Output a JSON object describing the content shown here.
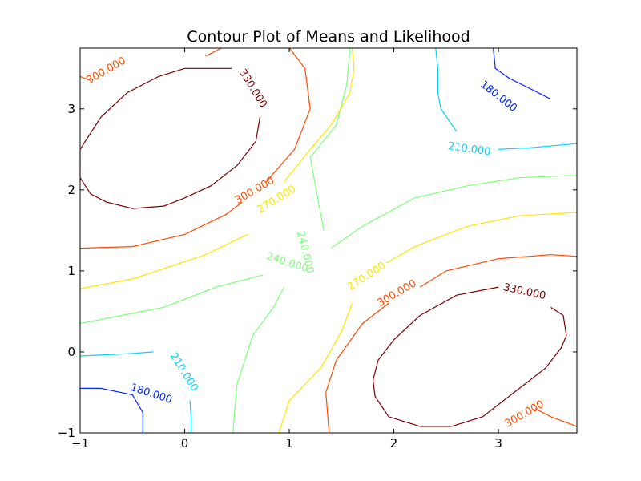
{
  "chart_data": {
    "type": "contour",
    "title": "Contour Plot of Means and Likelihood",
    "xlabel": "",
    "ylabel": "",
    "xlim": [
      -1,
      3.75
    ],
    "ylim": [
      -1,
      3.75
    ],
    "grid": false,
    "legend": "none",
    "x_ticks": [
      {
        "value": -1,
        "label": "−1"
      },
      {
        "value": 0,
        "label": "0"
      },
      {
        "value": 1,
        "label": "1"
      },
      {
        "value": 2,
        "label": "2"
      },
      {
        "value": 3,
        "label": "3"
      }
    ],
    "y_ticks": [
      {
        "value": -1,
        "label": "−1"
      },
      {
        "value": 0,
        "label": "0"
      },
      {
        "value": 1,
        "label": "1"
      },
      {
        "value": 2,
        "label": "2"
      },
      {
        "value": 3,
        "label": "3"
      }
    ],
    "levels": [
      {
        "level": 180,
        "color": "#0028ff",
        "paths": [
          [
            [
              2.95,
              3.75
            ],
            [
              2.97,
              3.5
            ],
            [
              3.1,
              3.38
            ],
            [
              3.35,
              3.22
            ],
            [
              3.5,
              3.12
            ]
          ],
          [
            [
              -1,
              -0.45
            ],
            [
              -0.8,
              -0.45
            ],
            [
              -0.5,
              -0.53
            ],
            [
              -0.4,
              -0.75
            ],
            [
              -0.4,
              -1
            ]
          ]
        ],
        "labels": [
          {
            "x": 3.0,
            "y": 3.15,
            "angle": 38,
            "text": "180.000"
          },
          {
            "x": -0.32,
            "y": -0.52,
            "angle": 18,
            "text": "180.000"
          }
        ]
      },
      {
        "level": 210,
        "color": "#00d4ff",
        "paths": [
          [
            [
              2.4,
              3.75
            ],
            [
              2.42,
              3.5
            ],
            [
              2.42,
              3.2
            ],
            [
              2.45,
              3.0
            ],
            [
              2.6,
              2.72
            ]
          ],
          [
            [
              3.0,
              2.5
            ],
            [
              3.3,
              2.52
            ],
            [
              3.75,
              2.57
            ]
          ],
          [
            [
              -1,
              -0.05
            ],
            [
              -0.5,
              -0.02
            ],
            [
              -0.3,
              0.0
            ]
          ],
          [
            [
              0.05,
              -0.6
            ],
            [
              0.06,
              -0.8
            ],
            [
              0.06,
              -1
            ]
          ]
        ],
        "labels": [
          {
            "x": 2.72,
            "y": 2.5,
            "angle": 8,
            "text": "210.000"
          },
          {
            "x": -0.01,
            "y": -0.25,
            "angle": 58,
            "text": "210.000"
          }
        ]
      },
      {
        "level": 240,
        "color": "#7dff7a",
        "paths": [
          [
            [
              1.58,
              3.75
            ],
            [
              1.55,
              3.3
            ],
            [
              1.45,
              2.8
            ],
            [
              1.2,
              2.4
            ],
            [
              1.33,
              1.5
            ]
          ],
          [
            [
              1.4,
              1.28
            ],
            [
              1.7,
              1.55
            ],
            [
              2.2,
              1.9
            ],
            [
              2.7,
              2.05
            ],
            [
              3.2,
              2.15
            ],
            [
              3.75,
              2.18
            ]
          ],
          [
            [
              -1,
              0.35
            ],
            [
              -0.2,
              0.55
            ],
            [
              0.3,
              0.8
            ],
            [
              0.75,
              0.95
            ]
          ],
          [
            [
              0.95,
              0.8
            ],
            [
              0.85,
              0.55
            ],
            [
              0.65,
              0.2
            ],
            [
              0.5,
              -0.4
            ],
            [
              0.46,
              -1
            ]
          ]
        ],
        "labels": [
          {
            "x": 0.98,
            "y": 1.1,
            "angle": 18,
            "text": "240.000"
          },
          {
            "x": 1.15,
            "y": 1.23,
            "angle": 76,
            "text": "240.000"
          }
        ]
      },
      {
        "level": 270,
        "color": "#ffe600",
        "paths": [
          [
            [
              1.6,
              3.75
            ],
            [
              1.62,
              3.5
            ],
            [
              1.58,
              3.2
            ],
            [
              1.4,
              2.8
            ],
            [
              1.2,
              2.5
            ],
            [
              0.95,
              2.1
            ]
          ],
          [
            [
              -1,
              0.78
            ],
            [
              -0.5,
              0.9
            ],
            [
              0.2,
              1.2
            ],
            [
              0.6,
              1.45
            ]
          ],
          [
            [
              1.93,
              1.1
            ],
            [
              2.2,
              1.3
            ],
            [
              2.7,
              1.55
            ],
            [
              3.2,
              1.68
            ],
            [
              3.75,
              1.72
            ]
          ],
          [
            [
              1.6,
              0.6
            ],
            [
              1.5,
              0.25
            ],
            [
              1.3,
              -0.2
            ],
            [
              1.0,
              -0.6
            ],
            [
              0.9,
              -1
            ]
          ]
        ],
        "labels": [
          {
            "x": 0.88,
            "y": 1.88,
            "angle": -32,
            "text": "270.000"
          },
          {
            "x": 1.74,
            "y": 0.93,
            "angle": -33,
            "text": "270.000"
          }
        ]
      },
      {
        "level": 300,
        "color": "#ff4a00",
        "paths": [
          [
            [
              0.35,
              3.75
            ],
            [
              0.2,
              3.65
            ]
          ],
          [
            [
              -1,
              3.4
            ],
            [
              -0.9,
              3.35
            ]
          ],
          [
            [
              1.0,
              3.75
            ],
            [
              1.15,
              3.5
            ],
            [
              1.2,
              3.0
            ],
            [
              1.05,
              2.5
            ],
            [
              0.78,
              2.1
            ]
          ],
          [
            [
              -1,
              1.28
            ],
            [
              -0.5,
              1.3
            ],
            [
              0,
              1.45
            ],
            [
              0.4,
              1.7
            ],
            [
              0.55,
              1.85
            ]
          ],
          [
            [
              2.25,
              0.8
            ],
            [
              2.5,
              1.0
            ],
            [
              3.0,
              1.15
            ],
            [
              3.5,
              1.2
            ],
            [
              3.75,
              1.18
            ]
          ],
          [
            [
              1.95,
              0.6
            ],
            [
              1.7,
              0.35
            ],
            [
              1.45,
              -0.1
            ],
            [
              1.35,
              -0.5
            ],
            [
              1.38,
              -1
            ]
          ],
          [
            [
              3.35,
              -0.7
            ],
            [
              3.5,
              -0.8
            ],
            [
              3.75,
              -0.92
            ]
          ]
        ],
        "labels": [
          {
            "x": -0.75,
            "y": 3.47,
            "angle": -30,
            "text": "300.000"
          },
          {
            "x": 0.67,
            "y": 1.99,
            "angle": -30,
            "text": "300.000"
          },
          {
            "x": 2.03,
            "y": 0.72,
            "angle": -30,
            "text": "300.000"
          },
          {
            "x": 3.25,
            "y": -0.77,
            "angle": -30,
            "text": "300.000"
          }
        ]
      },
      {
        "level": 330,
        "color": "#7f0000",
        "paths": [
          [
            [
              0.45,
              3.5
            ],
            [
              0.0,
              3.5
            ],
            [
              -0.25,
              3.4
            ],
            [
              -0.55,
              3.2
            ],
            [
              -0.8,
              2.9
            ],
            [
              -0.95,
              2.6
            ],
            [
              -1,
              2.5
            ],
            [
              -1,
              2.15
            ],
            [
              -0.9,
              1.95
            ],
            [
              -0.75,
              1.85
            ],
            [
              -0.5,
              1.77
            ],
            [
              -0.2,
              1.8
            ],
            [
              0.0,
              1.9
            ],
            [
              0.25,
              2.05
            ],
            [
              0.5,
              2.3
            ],
            [
              0.68,
              2.6
            ],
            [
              0.7,
              2.75
            ],
            [
              0.72,
              2.9
            ]
          ],
          [
            [
              3.0,
              0.8
            ],
            [
              2.6,
              0.7
            ],
            [
              2.25,
              0.45
            ],
            [
              2.0,
              0.15
            ],
            [
              1.85,
              -0.1
            ],
            [
              1.8,
              -0.35
            ],
            [
              1.82,
              -0.55
            ],
            [
              1.95,
              -0.8
            ],
            [
              2.25,
              -0.92
            ],
            [
              2.55,
              -0.92
            ],
            [
              2.85,
              -0.8
            ],
            [
              3.15,
              -0.5
            ],
            [
              3.45,
              -0.2
            ],
            [
              3.6,
              0.05
            ],
            [
              3.65,
              0.2
            ],
            [
              3.62,
              0.45
            ],
            [
              3.5,
              0.55
            ]
          ]
        ],
        "labels": [
          {
            "x": 0.65,
            "y": 3.25,
            "angle": 58,
            "text": "330.000"
          },
          {
            "x": 3.25,
            "y": 0.74,
            "angle": 12,
            "text": "330.000"
          }
        ]
      }
    ]
  }
}
